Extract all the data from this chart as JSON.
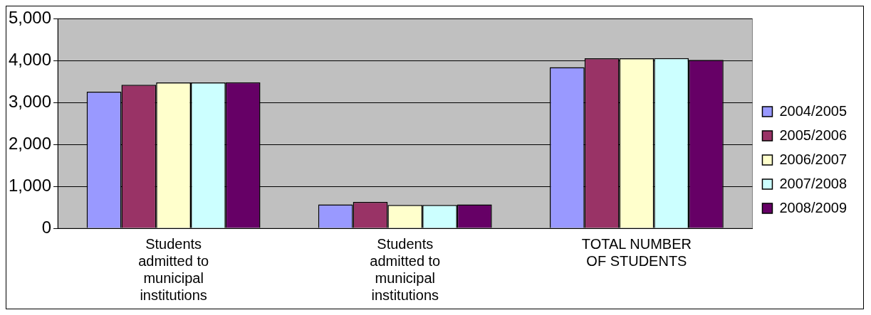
{
  "chart_data": {
    "type": "bar",
    "categories": [
      "Students admitted to municipal institutions",
      "Students admitted to municipal institutions",
      "TOTAL NUMBER OF STUDENTS"
    ],
    "series": [
      {
        "name": "2004/2005",
        "color": "#9999ff",
        "values": [
          3260,
          570,
          3845
        ]
      },
      {
        "name": "2005/2006",
        "color": "#993366",
        "values": [
          3425,
          630,
          4055
        ]
      },
      {
        "name": "2006/2007",
        "color": "#ffffcc",
        "values": [
          3480,
          555,
          4055
        ]
      },
      {
        "name": "2007/2008",
        "color": "#ccffff",
        "values": [
          3480,
          555,
          4060
        ]
      },
      {
        "name": "2008/2009",
        "color": "#660066",
        "values": [
          3485,
          570,
          4020
        ]
      }
    ],
    "ylim": [
      0,
      5000
    ],
    "yticks": [
      {
        "value": 0,
        "label": "0"
      },
      {
        "value": 1000,
        "label": "1,000"
      },
      {
        "value": 2000,
        "label": "2,000"
      },
      {
        "value": 3000,
        "label": "3,000"
      },
      {
        "value": 4000,
        "label": "4,000"
      },
      {
        "value": 5000,
        "label": "5,000"
      }
    ],
    "grid": "y",
    "legend": "right"
  }
}
